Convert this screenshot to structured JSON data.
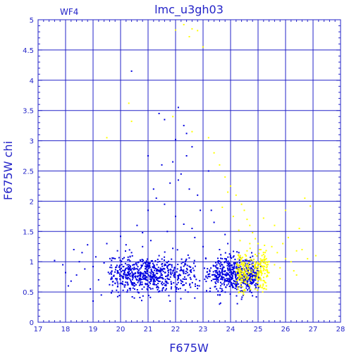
{
  "chart_data": {
    "type": "scatter",
    "title": "lmc_u3gh03",
    "panel_label": "WF4",
    "xlabel": "F675W",
    "ylabel": "F675W chi",
    "xlim": [
      17,
      28
    ],
    "ylim": [
      0,
      5
    ],
    "xticks": [
      17,
      18,
      19,
      20,
      21,
      22,
      23,
      24,
      25,
      26,
      27,
      28
    ],
    "yticks": [
      0,
      0.5,
      1,
      1.5,
      2,
      2.5,
      3,
      3.5,
      4,
      4.5,
      5
    ],
    "grid": true,
    "colors": {
      "axes": "#2323c8",
      "grid": "#2323c8",
      "blue_points": "#0000e0",
      "yellow_points": "#ffff00"
    },
    "series": [
      {
        "color": "blue",
        "points": [
          [
            17.6,
            1.02
          ],
          [
            17.9,
            0.95
          ],
          [
            18.0,
            0.82
          ],
          [
            18.2,
            0.68
          ],
          [
            18.4,
            0.78
          ],
          [
            18.5,
            1.0
          ],
          [
            18.7,
            0.88
          ],
          [
            18.8,
            1.28
          ],
          [
            18.9,
            0.55
          ],
          [
            19.0,
            0.92
          ],
          [
            19.1,
            1.08
          ],
          [
            19.2,
            0.7
          ],
          [
            19.4,
            0.98
          ],
          [
            19.5,
            1.3
          ],
          [
            19.6,
            0.62
          ],
          [
            19.8,
            1.05
          ],
          [
            19.9,
            0.85
          ],
          [
            20.0,
            1.42
          ],
          [
            20.1,
            0.75
          ],
          [
            20.3,
            0.95
          ],
          [
            20.4,
            1.15
          ],
          [
            20.5,
            0.6
          ],
          [
            20.6,
            1.6
          ],
          [
            20.7,
            0.88
          ],
          [
            20.8,
            1.25
          ],
          [
            20.9,
            0.72
          ],
          [
            21.0,
            1.85
          ],
          [
            21.0,
            2.75
          ],
          [
            21.1,
            1.35
          ],
          [
            21.2,
            0.9
          ],
          [
            21.3,
            2.05
          ],
          [
            21.4,
            1.1
          ],
          [
            21.5,
            2.6
          ],
          [
            21.6,
            3.35
          ],
          [
            21.7,
            1.5
          ],
          [
            21.8,
            2.3
          ],
          [
            21.9,
            1.22
          ],
          [
            22.0,
            3.02
          ],
          [
            22.0,
            1.75
          ],
          [
            22.1,
            3.55
          ],
          [
            22.2,
            2.45
          ],
          [
            22.3,
            1.62
          ],
          [
            22.4,
            3.12
          ],
          [
            22.5,
            2.2
          ],
          [
            22.6,
            2.9
          ],
          [
            22.7,
            1.4
          ],
          [
            22.8,
            2.1
          ],
          [
            22.9,
            1.85
          ],
          [
            23.0,
            1.25
          ],
          [
            23.2,
            2.5
          ],
          [
            23.4,
            1.65
          ],
          [
            23.6,
            1.2
          ],
          [
            23.8,
            1.45
          ],
          [
            24.0,
            1.1
          ],
          [
            24.2,
            0.9
          ],
          [
            24.5,
            0.75
          ],
          [
            24.8,
            0.65
          ],
          [
            20.4,
            4.15
          ],
          [
            21.4,
            3.45
          ],
          [
            22.3,
            3.25
          ],
          [
            18.1,
            0.6
          ],
          [
            18.6,
            1.15
          ],
          [
            19.3,
            0.45
          ],
          [
            19.7,
            0.52
          ],
          [
            20.2,
            1.28
          ],
          [
            20.8,
            1.48
          ],
          [
            21.1,
            0.55
          ],
          [
            21.6,
            1.95
          ],
          [
            22.1,
            2.35
          ],
          [
            22.6,
            1.55
          ],
          [
            23.1,
            1.05
          ],
          [
            23.5,
            0.95
          ],
          [
            23.9,
            1.3
          ],
          [
            24.3,
            1.15
          ],
          [
            24.7,
            1.0
          ],
          [
            21.2,
            2.2
          ],
          [
            21.9,
            2.65
          ],
          [
            22.4,
            2.75
          ],
          [
            23.3,
            1.85
          ],
          [
            23.7,
            1.05
          ],
          [
            19.0,
            0.35
          ],
          [
            20.5,
            0.4
          ],
          [
            21.8,
            0.35
          ],
          [
            22.7,
            0.4
          ],
          [
            23.6,
            0.3
          ],
          [
            24.4,
            0.38
          ],
          [
            18.3,
            1.2
          ],
          [
            19.6,
            0.8
          ],
          [
            20.9,
            0.98
          ],
          [
            22.2,
            0.88
          ]
        ]
      },
      {
        "color": "yellow",
        "points": [
          [
            19.5,
            3.05
          ],
          [
            20.3,
            3.62
          ],
          [
            20.4,
            3.32
          ],
          [
            22.0,
            4.83
          ],
          [
            22.3,
            4.92
          ],
          [
            22.5,
            4.72
          ],
          [
            22.6,
            4.85
          ],
          [
            22.8,
            4.82
          ],
          [
            23.0,
            4.55
          ],
          [
            21.9,
            3.4
          ],
          [
            22.6,
            3.15
          ],
          [
            23.2,
            3.05
          ],
          [
            23.4,
            2.8
          ],
          [
            23.6,
            2.6
          ],
          [
            23.8,
            2.4
          ],
          [
            24.0,
            2.25
          ],
          [
            24.2,
            2.1
          ],
          [
            24.4,
            1.95
          ],
          [
            24.5,
            1.85
          ],
          [
            24.6,
            1.7
          ],
          [
            24.7,
            1.6
          ],
          [
            24.8,
            1.48
          ],
          [
            24.9,
            1.38
          ],
          [
            25.0,
            1.3
          ],
          [
            25.1,
            1.2
          ],
          [
            25.2,
            1.12
          ],
          [
            25.3,
            1.05
          ],
          [
            25.4,
            1.0
          ],
          [
            25.5,
            1.25
          ],
          [
            25.6,
            0.95
          ],
          [
            25.7,
            1.15
          ],
          [
            25.8,
            0.9
          ],
          [
            25.9,
            1.3
          ],
          [
            26.0,
            1.05
          ],
          [
            26.1,
            1.4
          ],
          [
            26.2,
            1.0
          ],
          [
            26.3,
            0.85
          ],
          [
            26.4,
            1.18
          ],
          [
            26.5,
            1.55
          ],
          [
            26.6,
            1.2
          ],
          [
            26.7,
            2.05
          ],
          [
            26.8,
            1.05
          ],
          [
            26.9,
            1.92
          ],
          [
            27.1,
            1.1
          ],
          [
            24.3,
            0.85
          ],
          [
            24.5,
            0.72
          ],
          [
            24.6,
            0.95
          ],
          [
            24.7,
            0.6
          ],
          [
            24.8,
            0.8
          ],
          [
            24.9,
            0.55
          ],
          [
            25.0,
            0.7
          ],
          [
            24.4,
            1.05
          ],
          [
            24.6,
            1.18
          ],
          [
            24.8,
            1.02
          ],
          [
            25.0,
            0.92
          ],
          [
            24.2,
            0.65
          ],
          [
            23.9,
            2.15
          ],
          [
            24.1,
            1.75
          ],
          [
            24.3,
            1.52
          ],
          [
            25.2,
            1.72
          ],
          [
            25.6,
            1.6
          ],
          [
            26.0,
            1.85
          ],
          [
            26.4,
            0.78
          ],
          [
            25.4,
            0.82
          ],
          [
            25.8,
            0.72
          ],
          [
            24.7,
            1.3
          ],
          [
            24.9,
            1.12
          ],
          [
            25.1,
            0.98
          ],
          [
            23.7,
            1.9
          ],
          [
            25.3,
            0.6
          ]
        ]
      }
    ],
    "dense_cluster": {
      "color": "blue",
      "count": 1200,
      "x_range": [
        19.5,
        25.1
      ],
      "x_peak": 23.0,
      "y_center": 0.78,
      "y_spread": 0.14
    },
    "dense_cluster_yellow": {
      "color": "yellow",
      "count": 260,
      "x_range": [
        24.2,
        25.4
      ],
      "x_peak": 24.8,
      "y_center": 0.82,
      "y_spread": 0.16
    }
  }
}
